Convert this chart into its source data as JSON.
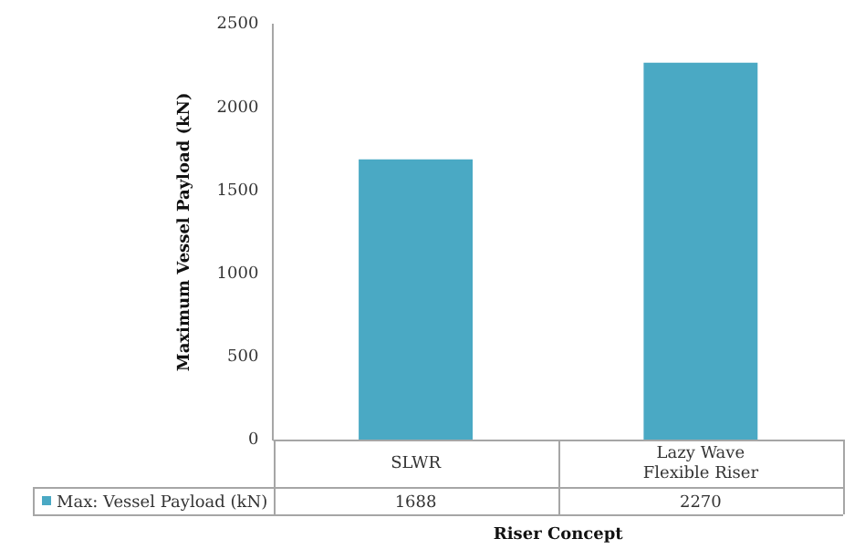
{
  "chart_data": {
    "type": "bar",
    "xlabel": "Riser Concept",
    "ylabel": "Maximum Vessel Payload (kN)",
    "categories": [
      "SLWR",
      "Lazy Wave Flexible Riser"
    ],
    "series": [
      {
        "name": "Max: Vessel Payload (kN)",
        "color": "#4aa9c4",
        "values": [
          1688,
          2270
        ]
      }
    ],
    "ylim": [
      0,
      2500
    ],
    "yticks": [
      0,
      500,
      1000,
      1500,
      2000,
      2500
    ],
    "grid": false,
    "legend": "bottom",
    "data_labels": true
  }
}
